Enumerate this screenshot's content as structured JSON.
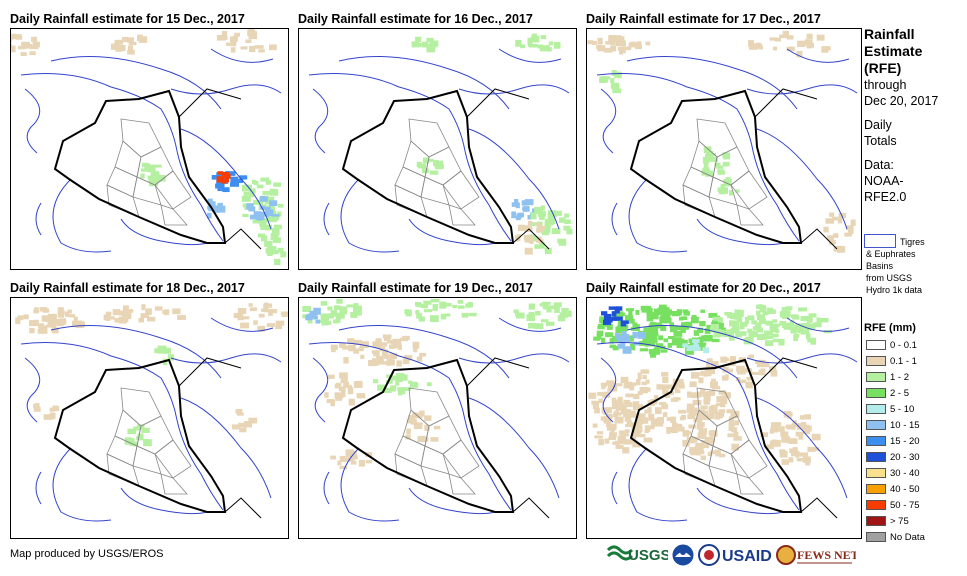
{
  "panels": [
    {
      "title": "Daily Rainfall estimate for 15 Dec., 2017"
    },
    {
      "title": "Daily Rainfall estimate for 16 Dec., 2017"
    },
    {
      "title": "Daily Rainfall estimate for 17 Dec., 2017"
    },
    {
      "title": "Daily Rainfall estimate for 18 Dec., 2017"
    },
    {
      "title": "Daily Rainfall estimate for 19 Dec., 2017"
    },
    {
      "title": "Daily Rainfall estimate for 20 Dec., 2017"
    }
  ],
  "sidebar": {
    "head": [
      "Rainfall",
      "Estimate",
      "(RFE)"
    ],
    "through": "through",
    "through_date": "Dec 20, 2017",
    "totals": [
      "Daily",
      "Totals"
    ],
    "data": [
      "Data:",
      "NOAA-",
      "RFE2.0"
    ]
  },
  "basin_legend": [
    "Tigres",
    "& Euphrates",
    "Basins",
    "from USGS",
    "Hydro 1k data"
  ],
  "legend": {
    "title": "RFE (mm)",
    "items": [
      {
        "label": "0 - 0.1",
        "color": "#ffffff"
      },
      {
        "label": "0.1 - 1",
        "color": "#e8d5b5"
      },
      {
        "label": "1 - 2",
        "color": "#b4f0a0"
      },
      {
        "label": "2 - 5",
        "color": "#78e060"
      },
      {
        "label": "5 - 10",
        "color": "#b4ecec"
      },
      {
        "label": "10 - 15",
        "color": "#8ec0f0"
      },
      {
        "label": "15 - 20",
        "color": "#3c8ef0"
      },
      {
        "label": "20 - 30",
        "color": "#1e50d8"
      },
      {
        "label": "30 - 40",
        "color": "#f8e08c"
      },
      {
        "label": "40 - 50",
        "color": "#f8a000"
      },
      {
        "label": "50 - 75",
        "color": "#f83c00"
      },
      {
        "label": "> 75",
        "color": "#a01414"
      },
      {
        "label": "No Data",
        "color": "#a0a0a0"
      }
    ]
  },
  "credit": "Map produced by USGS/EROS",
  "logos": [
    "USGS",
    "NOAA",
    "USAID",
    "FEWS NET"
  ]
}
